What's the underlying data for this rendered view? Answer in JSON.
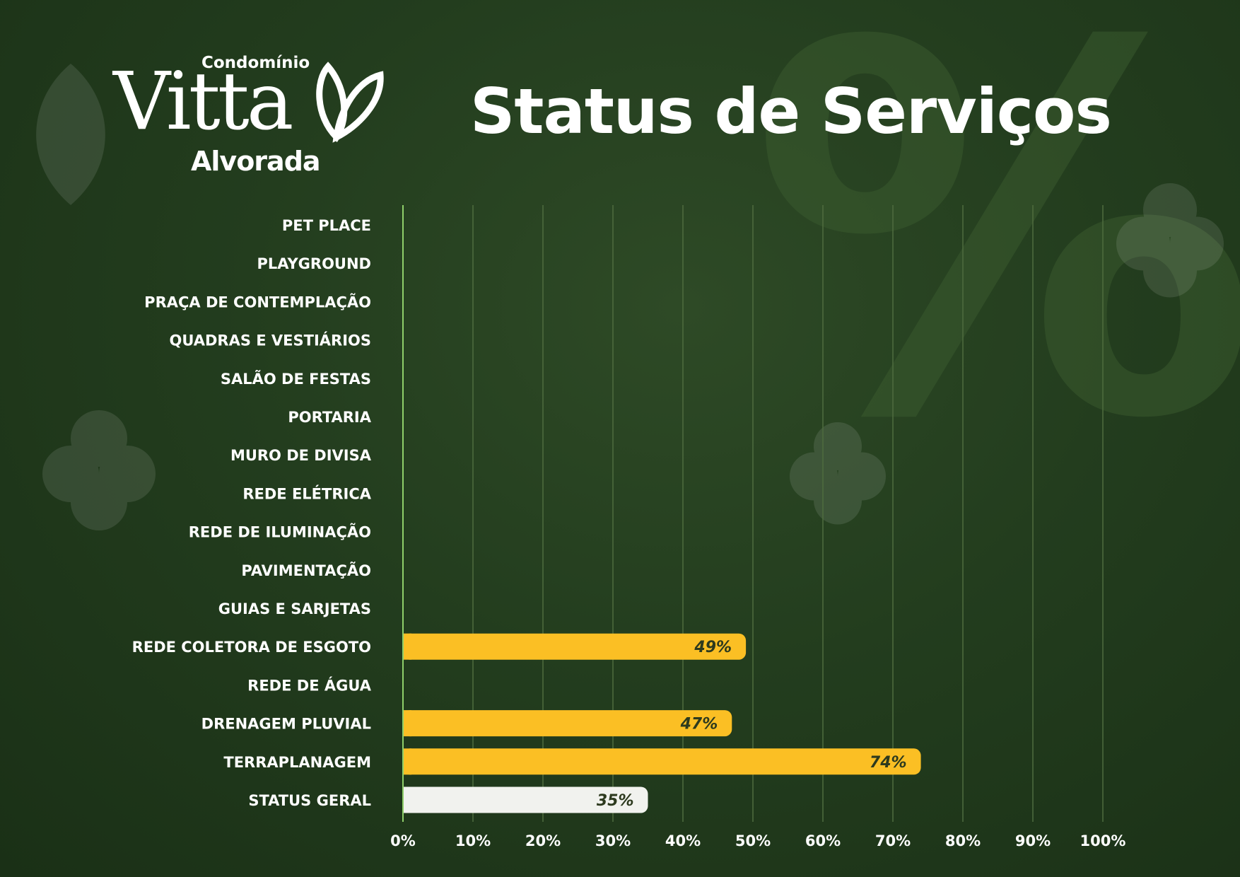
{
  "brand": {
    "top": "Condomínio",
    "name": "Vitta",
    "sub": "Alvorada"
  },
  "title": "Status de Serviços",
  "watermark": "%",
  "chart_data": {
    "type": "bar",
    "orientation": "horizontal",
    "title": "Status de Serviços",
    "categories": [
      "PET PLACE",
      "PLAYGROUND",
      "PRAÇA DE CONTEMPLAÇÃO",
      "QUADRAS E VESTIÁRIOS",
      "SALÃO DE FESTAS",
      "PORTARIA",
      "MURO DE DIVISA",
      "REDE ELÉTRICA",
      "REDE DE ILUMINAÇÃO",
      "PAVIMENTAÇÃO",
      "GUIAS E SARJETAS",
      "REDE COLETORA DE ESGOTO",
      "REDE DE ÁGUA",
      "DRENAGEM PLUVIAL",
      "TERRAPLANAGEM",
      "STATUS GERAL"
    ],
    "values": [
      0,
      0,
      0,
      0,
      0,
      0,
      0,
      0,
      0,
      0,
      0,
      49,
      0,
      47,
      74,
      35
    ],
    "value_labels": [
      "",
      "",
      "",
      "",
      "",
      "",
      "",
      "",
      "",
      "",
      "",
      "49%",
      "",
      "47%",
      "74%",
      "35%"
    ],
    "xlim": [
      0,
      100
    ],
    "x_ticks": [
      "0%",
      "10%",
      "20%",
      "30%",
      "40%",
      "50%",
      "60%",
      "70%",
      "80%",
      "90%",
      "100%"
    ],
    "grid": true,
    "colors": {
      "bar": "#fbbf24",
      "summary_bar": "#f1f2ee",
      "bar_label": "#2d3a1e",
      "gridline": "#4f6c3f",
      "axis": "#8fcf6a",
      "text": "#ffffff"
    }
  }
}
